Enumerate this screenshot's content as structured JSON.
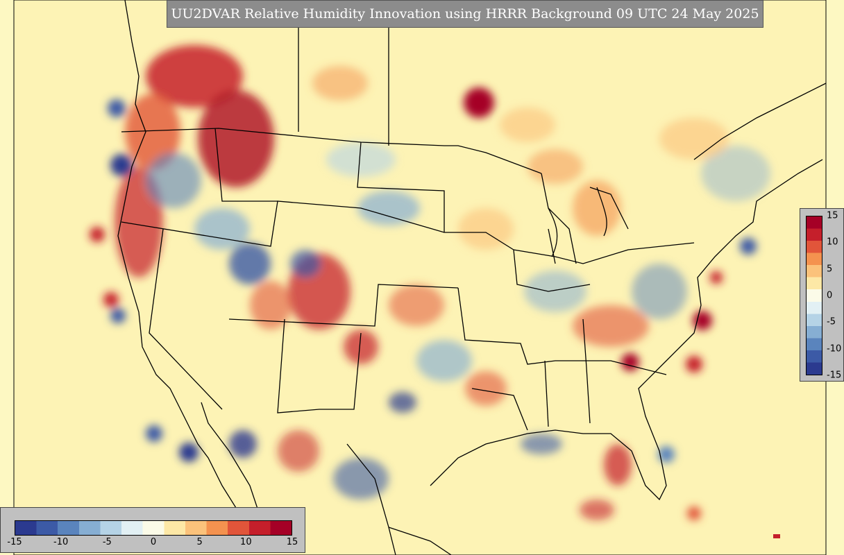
{
  "title": "UU2DVAR Relative Humidity Innovation using HRRR Background 09 UTC 24 May 2025",
  "colorbar": {
    "colors": [
      "#2b3a8f",
      "#3c5aa6",
      "#5a84bd",
      "#86aed3",
      "#b5d3e6",
      "#e2f0f4",
      "#fbfbe8",
      "#fde8a6",
      "#fbc27b",
      "#f4924f",
      "#e1553a",
      "#c51f2b",
      "#a50026"
    ],
    "horizontal_ticks": [
      "-15",
      "-10",
      "-5",
      "0",
      "5",
      "10",
      "15"
    ],
    "vertical_ticks": [
      "15",
      "10",
      "5",
      "0",
      "-5",
      "-10",
      "-15"
    ],
    "min": -15,
    "max": 15
  },
  "map": {
    "background_color": "#fdf8c2",
    "region": "CONUS"
  }
}
